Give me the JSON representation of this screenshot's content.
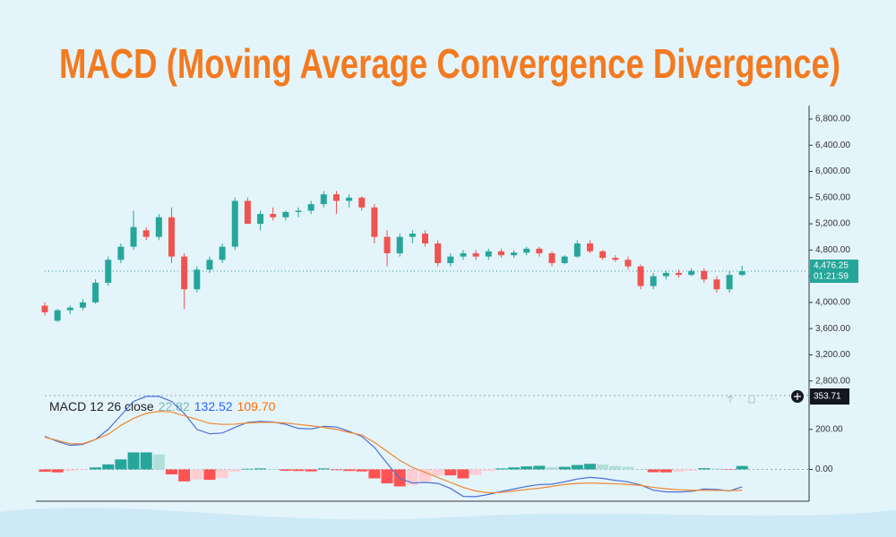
{
  "chart_data": [
    {
      "type": "candlestick",
      "title": "MACD (Moving Average Convergence Divergence)",
      "title_color": "#f47a20",
      "up_color": "#26a69a",
      "down_color": "#ef5350",
      "open": [
        3950,
        3720,
        3880,
        3920,
        4000,
        4300,
        4650,
        4850,
        5100,
        5000,
        5300,
        4700,
        4200,
        4500,
        4650,
        4850,
        5550,
        5200,
        5350,
        5300,
        5380,
        5400,
        5500,
        5650,
        5550,
        5600,
        5450,
        5000,
        4750,
        5000,
        5050,
        4900,
        4600,
        4700,
        4750,
        4700,
        4780,
        4720,
        4760,
        4820,
        4750,
        4600,
        4700,
        4900,
        4780,
        4680,
        4650,
        4550,
        4250,
        4400,
        4450,
        4420,
        4480,
        4350,
        4200,
        4420
      ],
      "high": [
        4000,
        3900,
        3950,
        4050,
        4350,
        4700,
        4900,
        5400,
        5150,
        5350,
        5450,
        4750,
        4550,
        4700,
        4900,
        5600,
        5600,
        5400,
        5450,
        5400,
        5450,
        5550,
        5700,
        5700,
        5650,
        5620,
        5500,
        5100,
        5050,
        5100,
        5100,
        4950,
        4750,
        4800,
        4800,
        4820,
        4820,
        4800,
        4850,
        4850,
        4780,
        4720,
        4950,
        4950,
        4800,
        4720,
        4700,
        4580,
        4450,
        4480,
        4500,
        4520,
        4520,
        4400,
        4480,
        4560
      ],
      "low": [
        3800,
        3700,
        3820,
        3880,
        3980,
        4250,
        4600,
        4800,
        4950,
        4950,
        4600,
        3900,
        4150,
        4450,
        4600,
        4800,
        5200,
        5100,
        5250,
        5250,
        5300,
        5350,
        5450,
        5350,
        5450,
        5400,
        4900,
        4550,
        4700,
        4900,
        4850,
        4550,
        4550,
        4650,
        4650,
        4650,
        4680,
        4680,
        4720,
        4700,
        4550,
        4580,
        4680,
        4750,
        4650,
        4620,
        4500,
        4200,
        4200,
        4350,
        4380,
        4400,
        4300,
        4150,
        4150,
        4400
      ],
      "close": [
        3850,
        3880,
        3920,
        4000,
        4300,
        4650,
        4850,
        5150,
        5000,
        5300,
        4700,
        4200,
        4500,
        4650,
        4850,
        5550,
        5200,
        5350,
        5300,
        5380,
        5400,
        5500,
        5650,
        5550,
        5600,
        5450,
        5000,
        4750,
        5000,
        5050,
        4900,
        4600,
        4700,
        4750,
        4700,
        4780,
        4720,
        4760,
        4820,
        4750,
        4600,
        4700,
        4900,
        4780,
        4680,
        4650,
        4550,
        4250,
        4400,
        4450,
        4420,
        4480,
        4350,
        4200,
        4420,
        4476
      ],
      "ylim": [
        2700,
        6950
      ],
      "yticks": [
        {
          "value": 2800,
          "label": "2,800.00"
        },
        {
          "value": 3200,
          "label": "3,200.00"
        },
        {
          "value": 3600,
          "label": "3,600.00"
        },
        {
          "value": 4000,
          "label": "4,000.00"
        },
        {
          "value": 4400,
          "label": "4,400.00"
        },
        {
          "value": 4800,
          "label": "4,800.00"
        },
        {
          "value": 5200,
          "label": "5,200.00"
        },
        {
          "value": 5600,
          "label": "5,600.00"
        },
        {
          "value": 6000,
          "label": "6,000.00"
        },
        {
          "value": 6400,
          "label": "6,400.00"
        },
        {
          "value": 6800,
          "label": "6,800.00"
        }
      ],
      "last_price": {
        "value": 4476.25,
        "label": "4,476.25",
        "countdown": "01:21:59",
        "color": "#26a69a"
      }
    },
    {
      "type": "macd",
      "status_label": "MACD 12 26 close",
      "status_values": [
        {
          "text": "22.82",
          "color": "#7fb8b3"
        },
        {
          "text": "132.52",
          "color": "#2962ff"
        },
        {
          "text": "109.70",
          "color": "#ff6d00"
        }
      ],
      "crosshair_label": "353.71",
      "series": [
        {
          "color": "#4a6fd8",
          "values": [
            165,
            140,
            120,
            125,
            150,
            200,
            270,
            340,
            365,
            365,
            340,
            280,
            200,
            178,
            182,
            210,
            235,
            240,
            237,
            225,
            205,
            202,
            215,
            212,
            190,
            165,
            110,
            30,
            -45,
            -68,
            -65,
            -70,
            -95,
            -135,
            -136,
            -125,
            -110,
            -98,
            -85,
            -76,
            -74,
            -62,
            -48,
            -40,
            -45,
            -55,
            -62,
            -78,
            -104,
            -112,
            -113,
            -110,
            -98,
            -100,
            -108,
            -87
          ]
        },
        {
          "color": "#f0882e",
          "values": [
            161,
            145,
            128,
            128,
            150,
            175,
            220,
            255,
            280,
            290,
            287,
            268,
            250,
            230,
            225,
            226,
            232,
            235,
            235,
            232,
            225,
            218,
            210,
            200,
            185,
            172,
            135,
            90,
            45,
            10,
            -15,
            -40,
            -65,
            -90,
            -108,
            -117,
            -115,
            -108,
            -100,
            -94,
            -85,
            -75,
            -70,
            -68,
            -70,
            -72,
            -75,
            -80,
            -90,
            -97,
            -102,
            -104,
            -104,
            -105,
            -106,
            -104
          ]
        }
      ],
      "histogram": {
        "values": [
          -12,
          -15,
          -8,
          -3,
          10,
          25,
          50,
          85,
          85,
          75,
          -25,
          -60,
          -50,
          -52,
          -43,
          -10,
          3,
          5,
          2,
          -7,
          -8,
          -10,
          5,
          -4,
          -8,
          -10,
          -45,
          -70,
          -85,
          -78,
          -60,
          -30,
          -30,
          -45,
          -28,
          -8,
          5,
          10,
          15,
          18,
          11,
          13,
          22,
          28,
          25,
          17,
          13,
          2,
          -14,
          -15,
          -11,
          -6,
          6,
          5,
          -2,
          17
        ],
        "colors": {
          "positive_rising": "#26a69a",
          "positive_falling": "#b2dfdb",
          "negative_falling": "#ff5252",
          "negative_rising": "#ffcdd2"
        }
      },
      "ylim": [
        -150,
        360
      ],
      "yticks": [
        {
          "value": 0,
          "label": "0.00"
        },
        {
          "value": 200,
          "label": "200.00"
        }
      ]
    }
  ]
}
